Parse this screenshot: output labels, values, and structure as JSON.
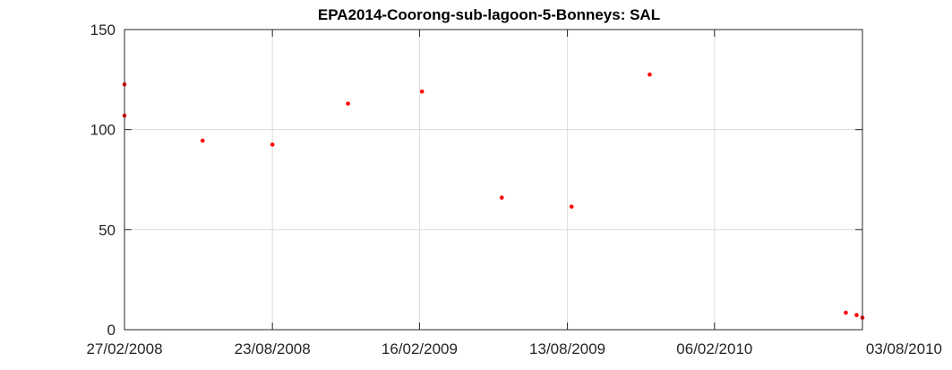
{
  "chart_data": {
    "type": "scatter",
    "title": "EPA2014-Coorong-sub-lagoon-5-Bonneys: SAL",
    "xlabel": "",
    "ylabel": "",
    "x_type": "date",
    "xlim": [
      "2008-02-27",
      "2010-08-03"
    ],
    "ylim": [
      0,
      150
    ],
    "x_ticks": [
      "2008-02-27",
      "2008-08-23",
      "2009-02-16",
      "2009-08-13",
      "2010-02-06",
      "2010-08-03"
    ],
    "x_tick_labels": [
      "27/02/2008",
      "23/08/2008",
      "16/02/2009",
      "13/08/2009",
      "06/02/2010",
      "03/08/2010"
    ],
    "y_ticks": [
      0,
      50,
      100,
      150
    ],
    "y_tick_labels": [
      "0",
      "50",
      "100",
      "150"
    ],
    "grid": true,
    "marker_color": "#ff0000",
    "points": [
      {
        "x": "2008-02-27",
        "y": 122.6
      },
      {
        "x": "2008-02-27",
        "y": 107.0
      },
      {
        "x": "2008-05-31",
        "y": 94.5
      },
      {
        "x": "2008-08-23",
        "y": 92.5
      },
      {
        "x": "2008-11-22",
        "y": 113.0
      },
      {
        "x": "2009-02-19",
        "y": 119.0
      },
      {
        "x": "2009-05-26",
        "y": 66.0
      },
      {
        "x": "2009-08-18",
        "y": 61.5
      },
      {
        "x": "2009-11-20",
        "y": 127.5
      },
      {
        "x": "2010-07-14",
        "y": 8.5
      },
      {
        "x": "2010-07-27",
        "y": 7.3
      },
      {
        "x": "2010-08-03",
        "y": 6.0
      }
    ]
  }
}
